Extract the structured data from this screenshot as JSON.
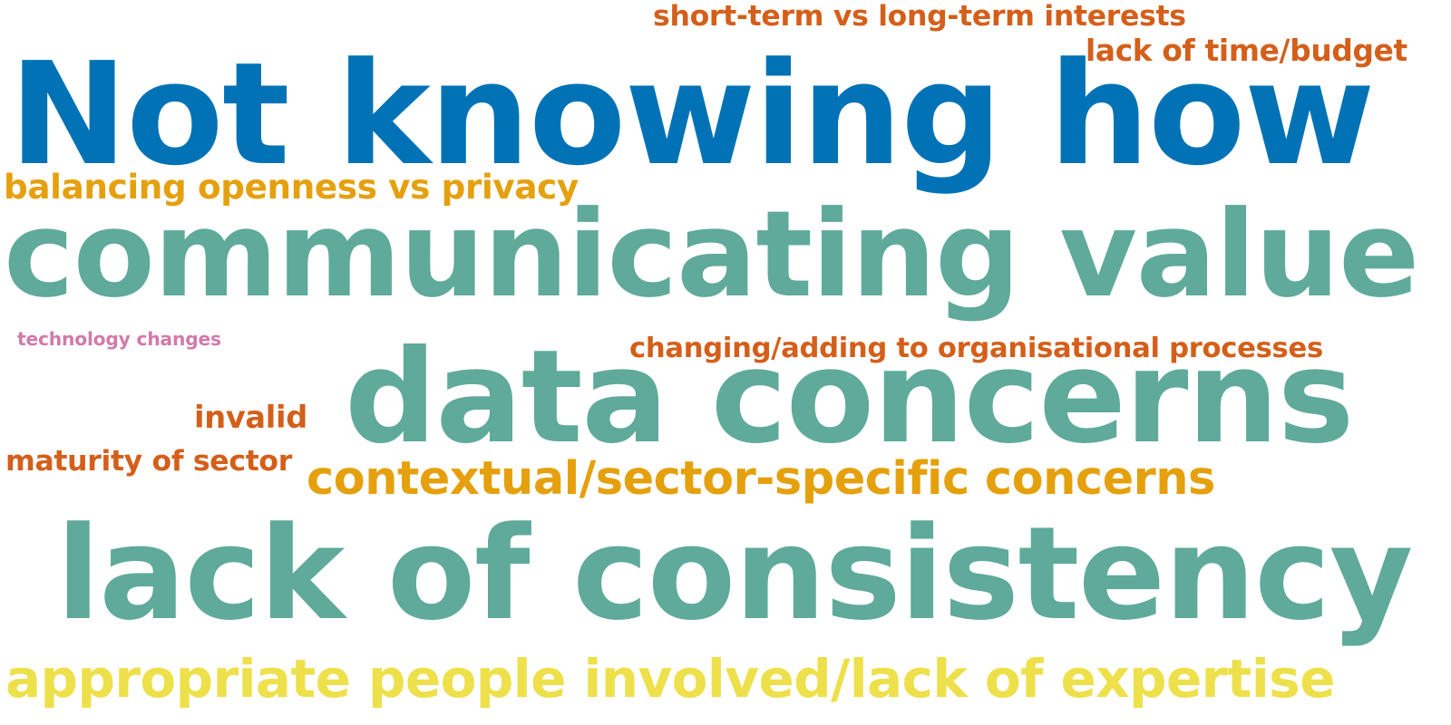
{
  "palette": {
    "blue": "#0072B5",
    "teal": "#5FAA9A",
    "orange": "#D45F1A",
    "amber": "#E5A00D",
    "yellow": "#EDE04A",
    "pink": "#D17AAB"
  },
  "words": [
    {
      "id": "short-term",
      "text": "short-term vs long-term interests",
      "color": "orange"
    },
    {
      "id": "lack-of-time",
      "text": "lack of time/budget",
      "color": "orange"
    },
    {
      "id": "not-knowing-how",
      "text": "Not knowing how",
      "color": "blue"
    },
    {
      "id": "balancing-openness",
      "text": "balancing openness vs privacy",
      "color": "amber"
    },
    {
      "id": "communicating-value",
      "text": "communicating value",
      "color": "teal"
    },
    {
      "id": "technology-changes",
      "text": "technology changes",
      "color": "pink"
    },
    {
      "id": "changing-adding",
      "text": "changing/adding to organisational processes",
      "color": "orange"
    },
    {
      "id": "invalid",
      "text": "invalid",
      "color": "orange"
    },
    {
      "id": "data-concerns",
      "text": "data concerns",
      "color": "teal"
    },
    {
      "id": "maturity-of-sector",
      "text": "maturity of sector",
      "color": "orange"
    },
    {
      "id": "contextual-sector",
      "text": "contextual/sector-specific concerns",
      "color": "amber"
    },
    {
      "id": "lack-of-consistency",
      "text": "lack of consistency",
      "color": "teal"
    },
    {
      "id": "appropriate-people",
      "text": "appropriate people involved/lack of expertise",
      "color": "yellow"
    }
  ]
}
